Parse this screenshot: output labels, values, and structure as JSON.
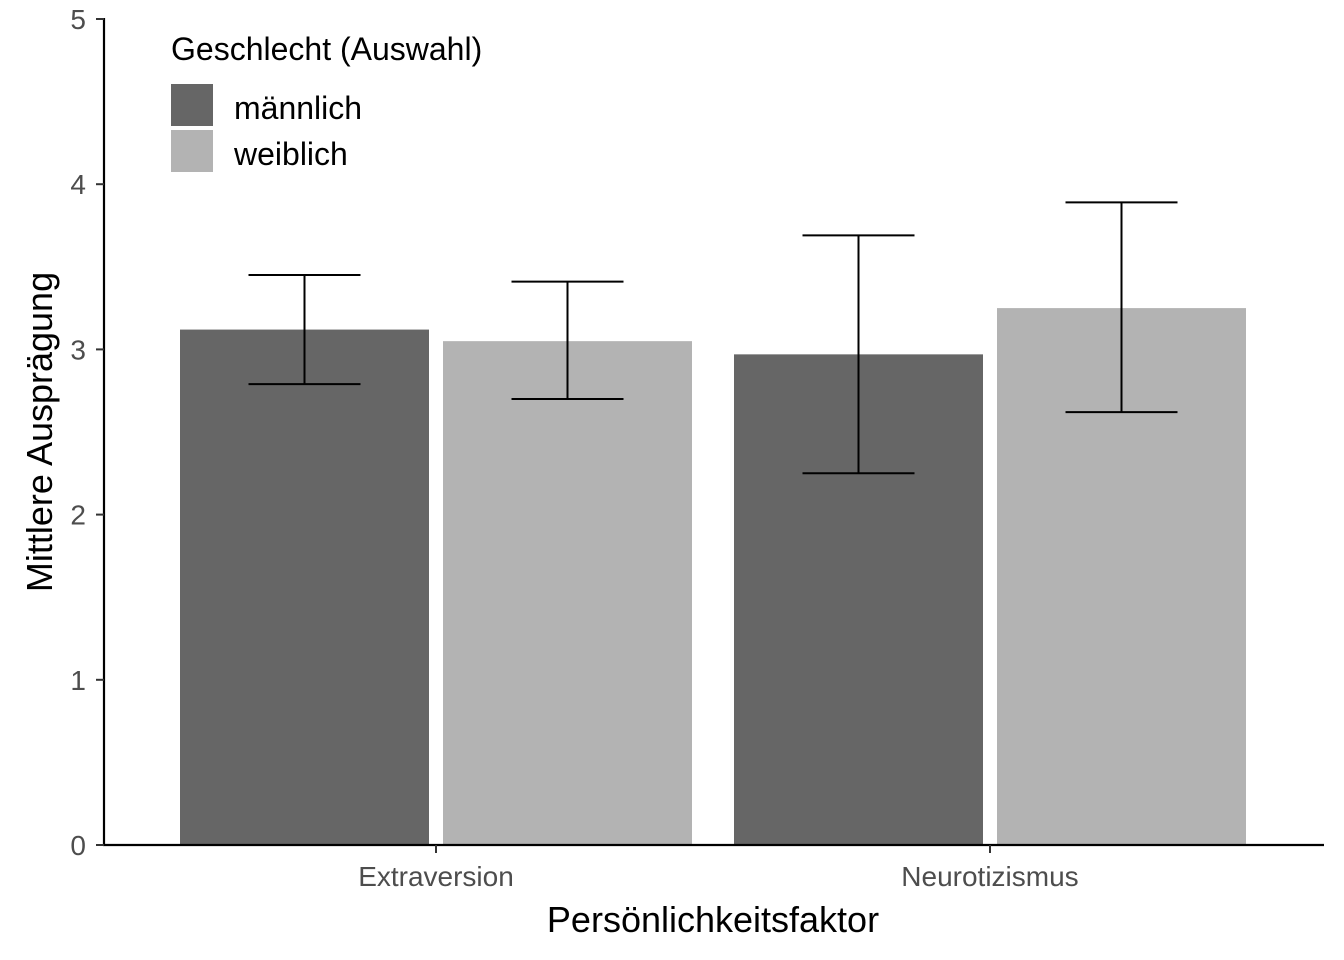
{
  "chart_data": {
    "type": "bar",
    "categories": [
      "Extraversion",
      "Neurotizismus"
    ],
    "series": [
      {
        "name": "männlich",
        "color": "#666666",
        "values": [
          3.12,
          2.97
        ],
        "error_low": [
          2.79,
          2.25
        ],
        "error_high": [
          3.45,
          3.69
        ]
      },
      {
        "name": "weiblich",
        "color": "#b3b3b3",
        "values": [
          3.05,
          3.25
        ],
        "error_low": [
          2.7,
          2.62
        ],
        "error_high": [
          3.41,
          3.89
        ]
      }
    ],
    "xlabel": "Persönlichkeitsfaktor",
    "ylabel": "Mittlere Ausprägung",
    "ylim": [
      0,
      5
    ],
    "yticks": [
      "0",
      "1",
      "2",
      "3",
      "4",
      "5"
    ],
    "legend": {
      "title": "Geschlecht (Auswahl)",
      "placement": "top-left"
    },
    "grid": false
  }
}
